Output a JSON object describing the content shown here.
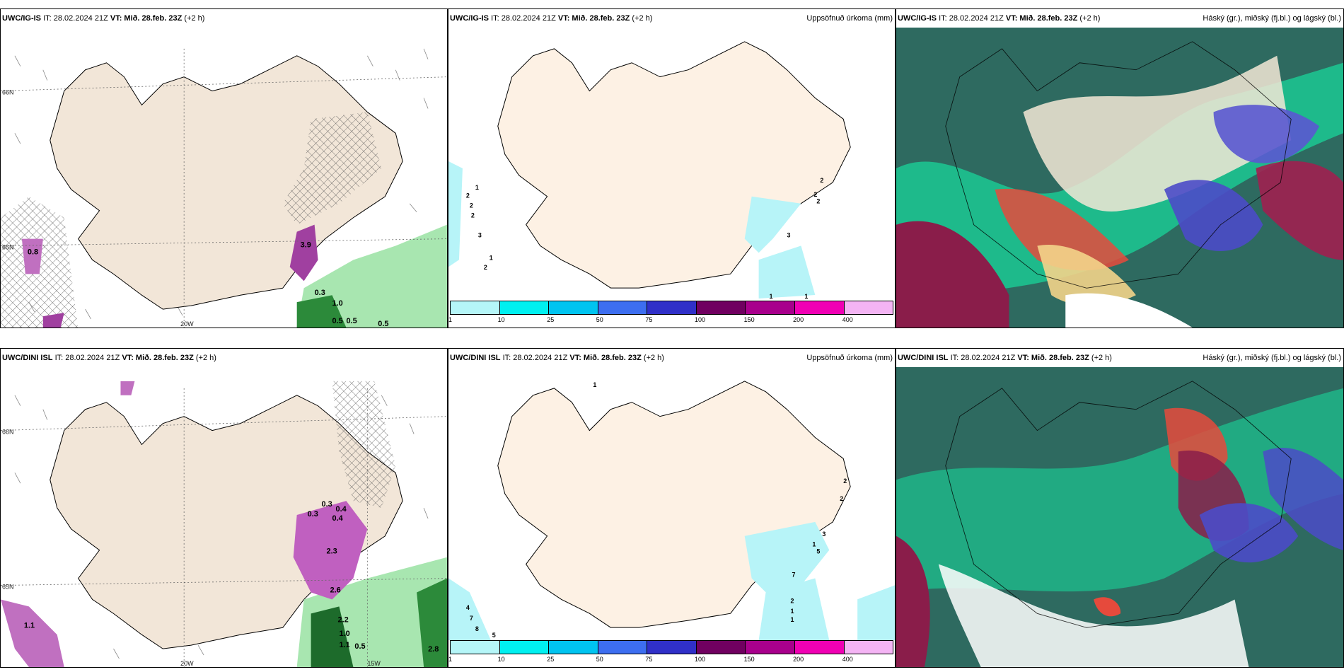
{
  "rows": [
    {
      "model": "UWC/IG-IS",
      "it": "IT: 28.02.2024 21Z",
      "vt_label": "VT:",
      "vt": "Mið. 28.feb. 23Z",
      "lead": "(+2 h)",
      "precip_values": [
        "1",
        "2",
        "2",
        "2",
        "3",
        "1",
        "2",
        "2",
        "2",
        "2",
        "3",
        "1",
        "1"
      ],
      "wind_values": [
        "3.9",
        "0.3",
        "1.0",
        "0.5",
        "0.5",
        "0.5",
        "0.8"
      ],
      "axis_labels": [
        "66N",
        "65N",
        "20W"
      ]
    },
    {
      "model": "UWC/DINI ISL",
      "it": "IT: 28.02.2024 21Z",
      "vt_label": "VT:",
      "vt": "Mið. 28.feb. 23Z",
      "lead": "(+2 h)",
      "precip_values": [
        "1",
        "4",
        "7",
        "8",
        "5",
        "7",
        "2",
        "1",
        "1",
        "5",
        "3",
        "1",
        "2",
        "2"
      ],
      "wind_values": [
        "0.3",
        "0.4",
        "0.4",
        "0.3",
        "2.3",
        "2.6",
        "2.2",
        "1.0",
        "1.1",
        "0.5",
        "2.8",
        "1.1"
      ],
      "axis_labels": [
        "66N",
        "65N",
        "20W",
        "15W"
      ]
    }
  ],
  "panel_titles": {
    "precip": "Uppsöfnuð úrkoma (mm)",
    "cloud": "Háský (gr.), miðský (fj.bl.) og lágský (bl.)"
  },
  "colorbar": {
    "ticks": [
      "1",
      "10",
      "25",
      "50",
      "75",
      "100",
      "150",
      "200",
      "400"
    ],
    "colors": [
      "#b5f6f8",
      "#00f0f0",
      "#00c4f0",
      "#3d6ef0",
      "#3030c8",
      "#700060",
      "#a8008c",
      "#f000b4",
      "#f4b4f4"
    ]
  },
  "colors": {
    "land": "#f2e6d8",
    "land_precip": "#fdf1e4",
    "light_precip": "#b7f4f8"
  }
}
